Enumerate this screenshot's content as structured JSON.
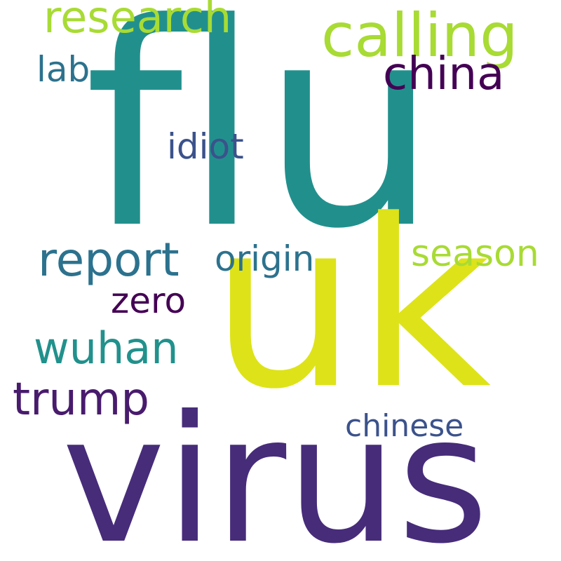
{
  "words": {
    "flu": {
      "text": "flu",
      "color": "#21908d"
    },
    "uk": {
      "text": "uk",
      "color": "#dde318"
    },
    "virus": {
      "text": "virus",
      "color": "#472c7a"
    },
    "calling": {
      "text": "calling",
      "color": "#a8db34"
    },
    "research": {
      "text": "research",
      "color": "#a8db34"
    },
    "china": {
      "text": "china",
      "color": "#440154"
    },
    "lab": {
      "text": "lab",
      "color": "#2c728e"
    },
    "idiot": {
      "text": "idiot",
      "color": "#3b528b"
    },
    "report": {
      "text": "report",
      "color": "#2c728e"
    },
    "origin": {
      "text": "origin",
      "color": "#2c728e"
    },
    "season": {
      "text": "season",
      "color": "#a8db34"
    },
    "zero": {
      "text": "zero",
      "color": "#440154"
    },
    "wuhan": {
      "text": "wuhan",
      "color": "#21918c"
    },
    "trump": {
      "text": "trump",
      "color": "#481b6d"
    },
    "chinese": {
      "text": "chinese",
      "color": "#3b528b"
    }
  }
}
